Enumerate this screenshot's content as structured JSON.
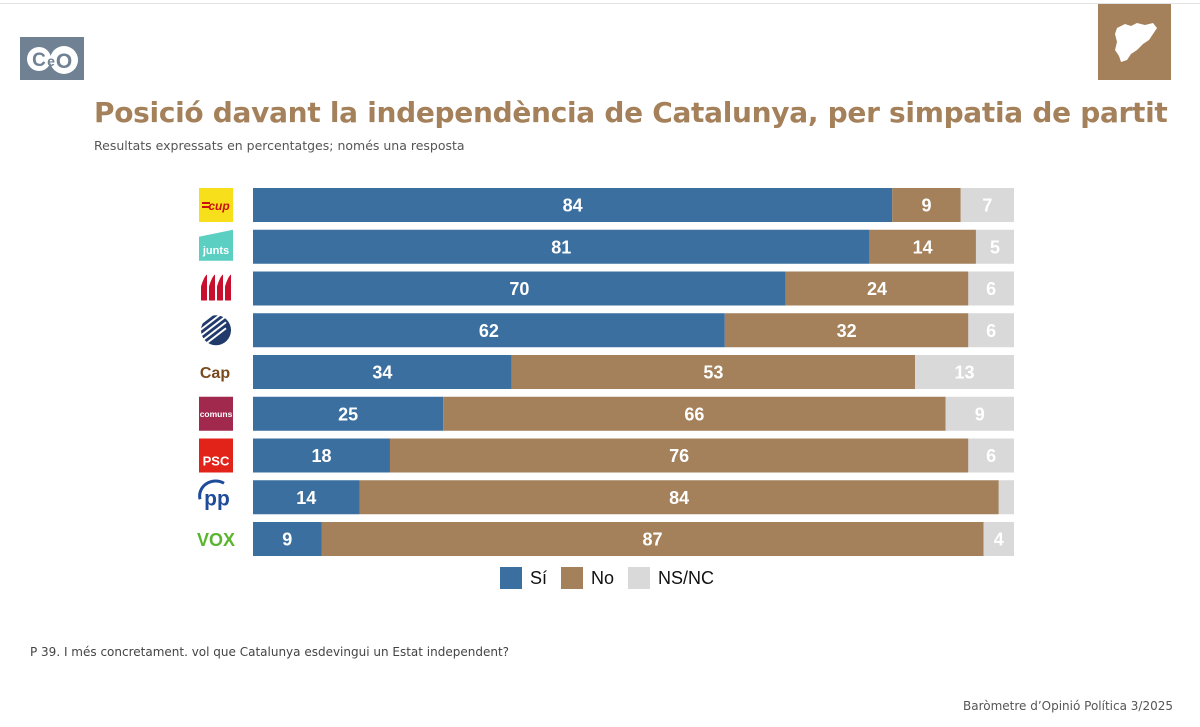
{
  "header": {
    "logo_text": "CeO",
    "map_icon": "catalonia-map-icon",
    "title_bold": "Posició davant la independència de Catalunya,",
    "title_rest": " per simpatia de partit",
    "subtitle": "Resultats expressats en percentatges; només una resposta"
  },
  "chart_data": {
    "type": "bar",
    "orientation": "horizontal",
    "stacked": true,
    "title": "Posició davant la independència de Catalunya, per simpatia de partit",
    "xlim": [
      0,
      100
    ],
    "categories": [
      "CUP",
      "Junts",
      "ERC",
      "Aliança Catalana",
      "Cap",
      "Comuns",
      "PSC",
      "PP",
      "Vox"
    ],
    "category_logo_text": [
      "cup",
      "junts",
      "",
      "",
      "Cap",
      "comuns",
      "PSC",
      "pp",
      "VOX"
    ],
    "series": [
      {
        "name": "Sí",
        "color": "#3a6f9f",
        "values": [
          84,
          81,
          70,
          62,
          34,
          25,
          18,
          14,
          9
        ]
      },
      {
        "name": "No",
        "color": "#a4815a",
        "values": [
          9,
          14,
          24,
          32,
          53,
          66,
          76,
          84,
          87
        ]
      },
      {
        "name": "NS/NC",
        "color": "#d9d9d9",
        "values": [
          7,
          5,
          6,
          6,
          13,
          9,
          6,
          2,
          4
        ]
      }
    ],
    "hidden_labels": [
      [],
      [],
      [],
      [],
      [],
      [],
      [],
      [
        2
      ],
      []
    ],
    "legend_position": "bottom"
  },
  "footer": {
    "question": "P 39. I més concretament. vol que Catalunya esdevingui un Estat independent?",
    "source": "Baròmetre d’Opinió Política 3/2025"
  }
}
